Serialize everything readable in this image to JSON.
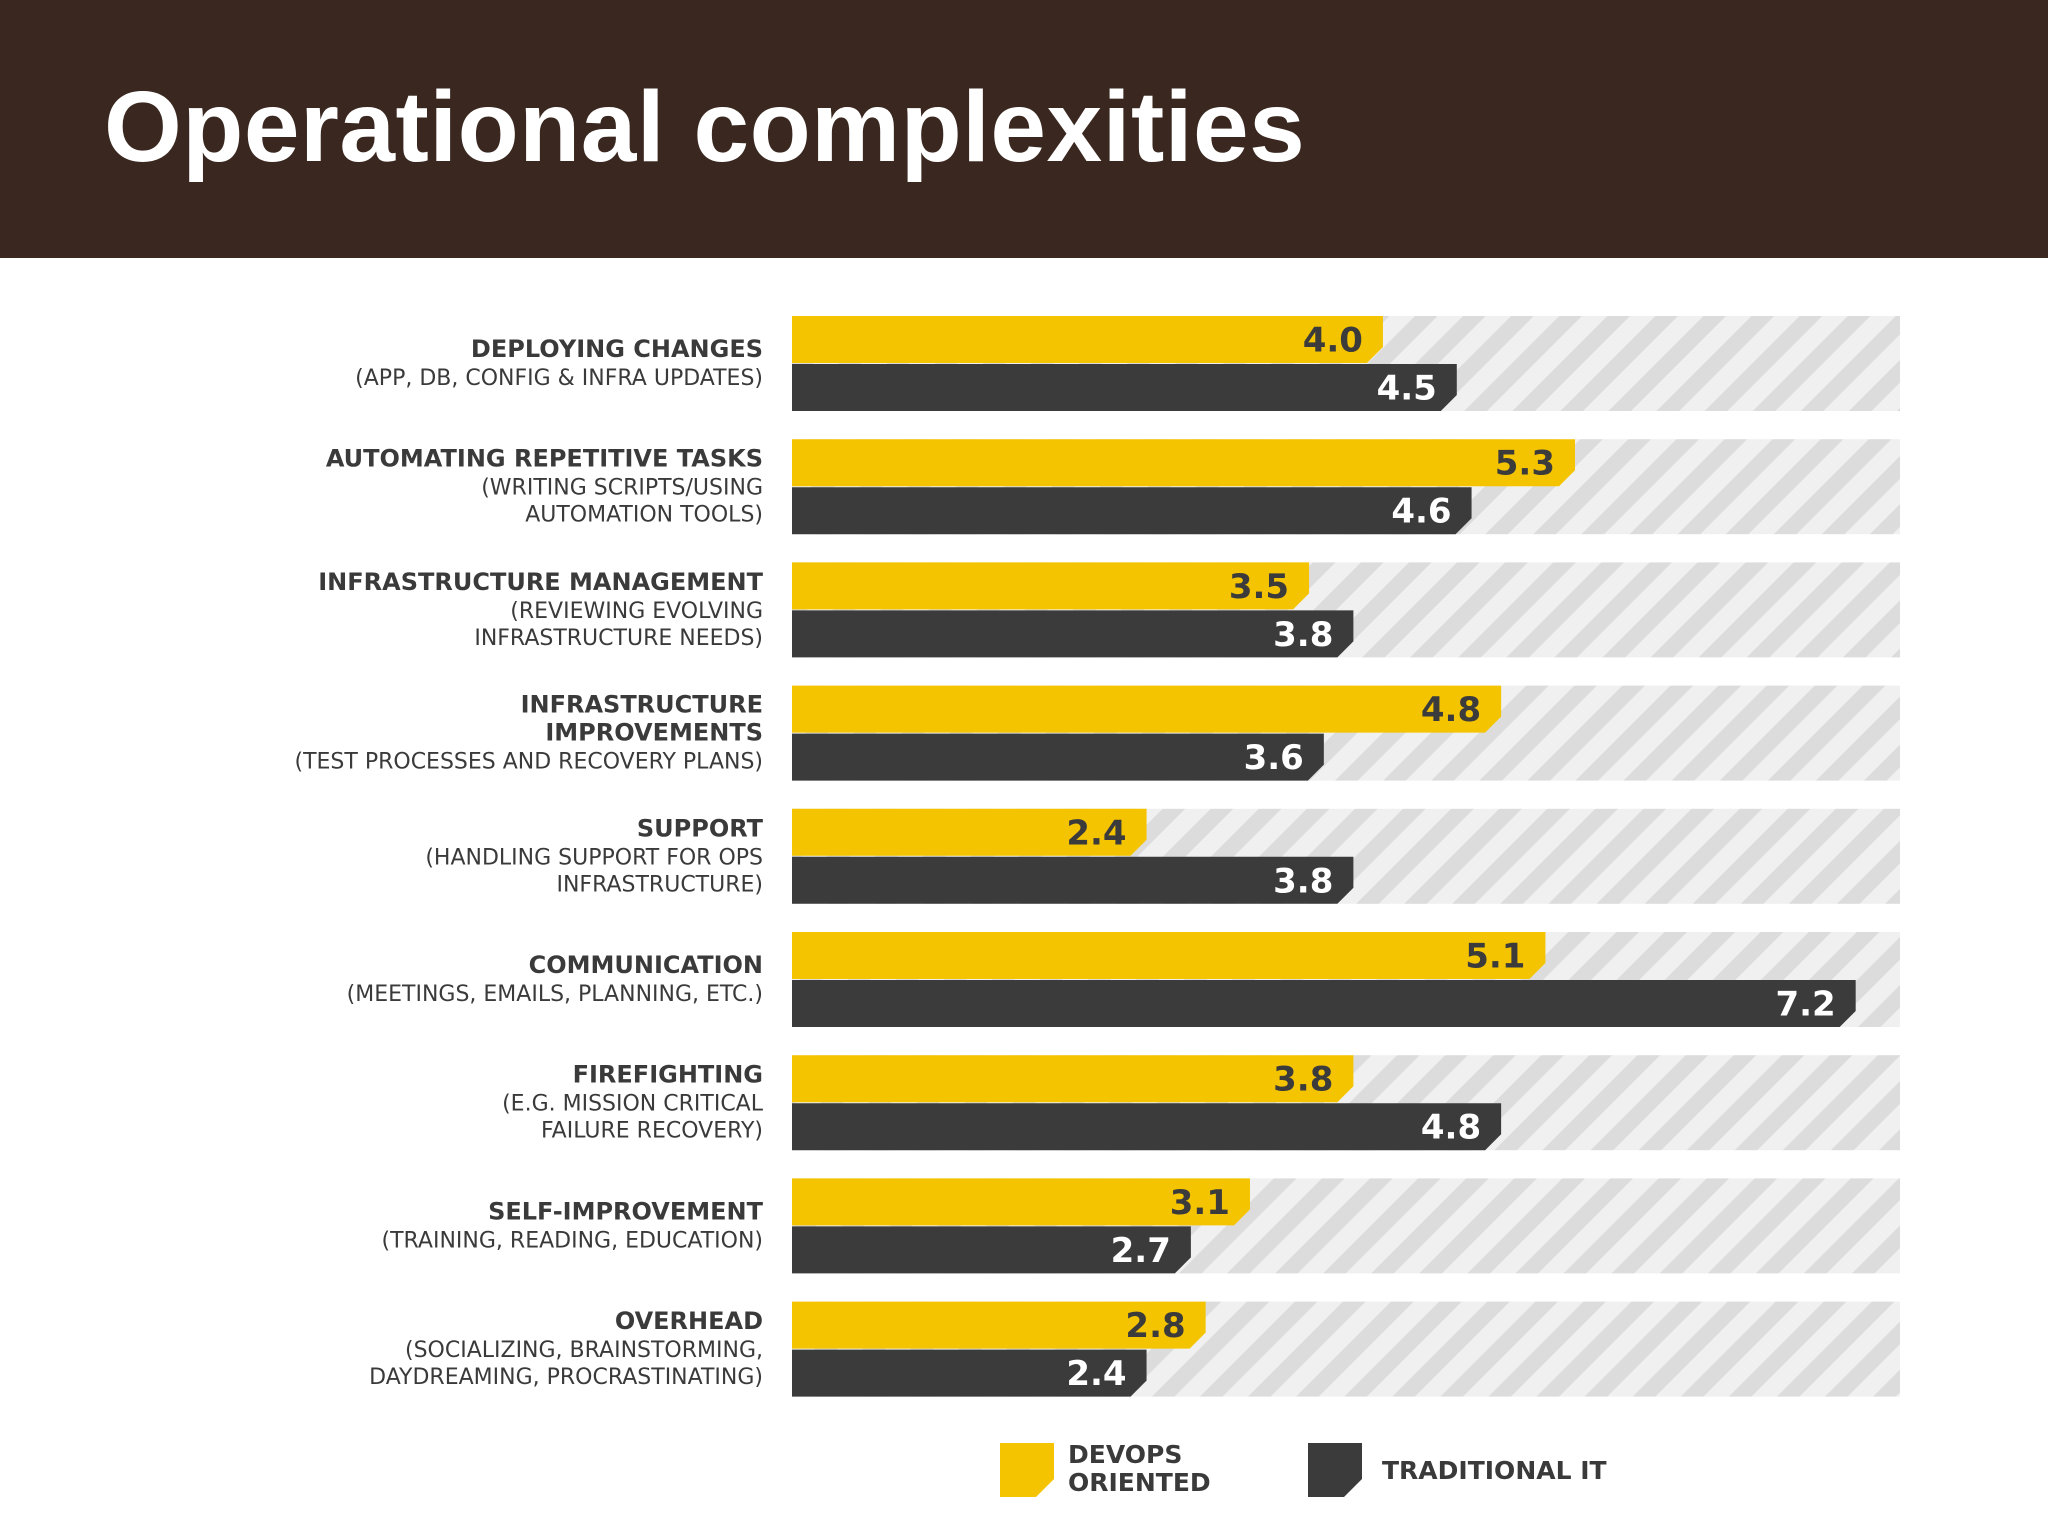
{
  "title": "Operational complexities",
  "colors": {
    "devops": "#f5c400",
    "traditional": "#3b3b3b",
    "header_bg": "#3a2820",
    "hatch_light": "#f0f0f0",
    "hatch_dark": "#dcdcdc"
  },
  "chart_data": {
    "type": "bar",
    "orientation": "horizontal",
    "xlim": [
      0,
      7.5
    ],
    "categories": [
      {
        "title": [
          "DEPLOYING CHANGES"
        ],
        "subtitle": [
          "(APP, DB, CONFIG & INFRA UPDATES)"
        ]
      },
      {
        "title": [
          "AUTOMATING REPETITIVE TASKS"
        ],
        "subtitle": [
          "(WRITING SCRIPTS/USING",
          "AUTOMATION TOOLS)"
        ]
      },
      {
        "title": [
          "INFRASTRUCTURE MANAGEMENT"
        ],
        "subtitle": [
          "(REVIEWING EVOLVING",
          "INFRASTRUCTURE NEEDS)"
        ]
      },
      {
        "title": [
          "INFRASTRUCTURE",
          "IMPROVEMENTS"
        ],
        "subtitle": [
          "(TEST PROCESSES AND RECOVERY PLANS)"
        ]
      },
      {
        "title": [
          "SUPPORT"
        ],
        "subtitle": [
          "(HANDLING SUPPORT FOR OPS",
          "INFRASTRUCTURE)"
        ]
      },
      {
        "title": [
          "COMMUNICATION"
        ],
        "subtitle": [
          "(MEETINGS, EMAILS, PLANNING, ETC.)"
        ]
      },
      {
        "title": [
          "FIREFIGHTING"
        ],
        "subtitle": [
          "(E.G. MISSION CRITICAL",
          "FAILURE RECOVERY)"
        ]
      },
      {
        "title": [
          "SELF-IMPROVEMENT"
        ],
        "subtitle": [
          "(TRAINING, READING, EDUCATION)"
        ]
      },
      {
        "title": [
          "OVERHEAD"
        ],
        "subtitle": [
          "(SOCIALIZING, BRAINSTORMING,",
          "DAYDREAMING, PROCRASTINATING)"
        ]
      }
    ],
    "series": [
      {
        "name": "DEVOPS ORIENTED",
        "values": [
          4.0,
          5.3,
          3.5,
          4.8,
          2.4,
          5.1,
          3.8,
          3.1,
          2.8
        ],
        "labels": [
          "4.0",
          "5.3",
          "3.5",
          "4.8",
          "2.4",
          "5.1",
          "3.8",
          "3.1",
          "2.8"
        ]
      },
      {
        "name": "TRADITIONAL IT",
        "values": [
          4.5,
          4.6,
          3.8,
          3.6,
          3.8,
          7.2,
          4.8,
          2.7,
          2.4
        ],
        "labels": [
          "4.5",
          "4.6",
          "3.8",
          "3.6",
          "3.8",
          "7.2",
          "4.8",
          "2.7",
          "2.4"
        ]
      }
    ],
    "legend": [
      {
        "lines": [
          "DEVOPS",
          "ORIENTED"
        ]
      },
      {
        "lines": [
          "TRADITIONAL IT"
        ]
      }
    ],
    "legend_position": "bottom-center"
  }
}
